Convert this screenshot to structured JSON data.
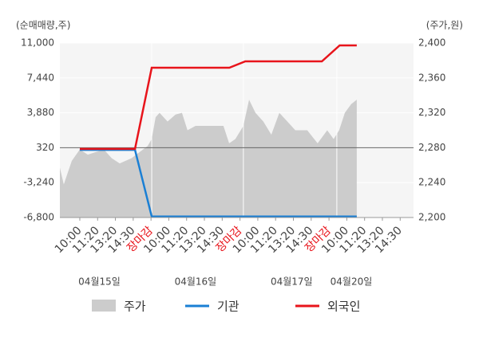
{
  "chart_data": {
    "type": "line",
    "y_label": "(순매매량,주)",
    "y2_label": "(주가,원)",
    "xlim": [
      -1.12,
      18.75
    ],
    "xticks": [
      {
        "value": 0,
        "label": "10:00"
      },
      {
        "value": 1,
        "label": "11:20"
      },
      {
        "value": 2,
        "label": "13:20"
      },
      {
        "value": 3,
        "label": "14:30"
      },
      {
        "value": 4,
        "label": "장마감"
      },
      {
        "value": 5,
        "label": "10:00"
      },
      {
        "value": 6,
        "label": "11:20"
      },
      {
        "value": 7,
        "label": "13:20"
      },
      {
        "value": 8,
        "label": "14:30"
      },
      {
        "value": 9,
        "label": "장마감"
      },
      {
        "value": 10,
        "label": "10:00"
      },
      {
        "value": 11,
        "label": "11:20"
      },
      {
        "value": 12,
        "label": "13:20"
      },
      {
        "value": 13,
        "label": "14:30"
      },
      {
        "value": 14,
        "label": "장마감"
      },
      {
        "value": 15,
        "label": "10:00"
      },
      {
        "value": 16,
        "label": "11:20"
      },
      {
        "value": 17,
        "label": "13:20"
      },
      {
        "value": 18,
        "label": "14:30"
      }
    ],
    "day_labels": [
      {
        "label": "04월15일",
        "x": 1.1
      },
      {
        "label": "04월16일",
        "x": 6.5
      },
      {
        "label": "04월17일",
        "x": 11.9
      },
      {
        "label": "04월20일",
        "x": 15.25
      }
    ],
    "day_breaks": [
      4.04,
      9.19,
      14.44
    ],
    "ylim": [
      -6800,
      11000
    ],
    "yticks": [
      {
        "value": 11000,
        "label": "11,000"
      },
      {
        "value": 7440,
        "label": "7,440"
      },
      {
        "value": 3880,
        "label": "3,880"
      },
      320,
      {
        "value": -3240,
        "label": "-3,240"
      },
      {
        "value": -6800,
        "label": "-6,800"
      }
    ],
    "y2lim": [
      2200,
      2400
    ],
    "y2ticks": [
      {
        "value": 2400,
        "label": "2,400"
      },
      {
        "value": 2360,
        "label": "2,360"
      },
      {
        "value": 2320,
        "label": "2,320"
      },
      {
        "value": 2280,
        "label": "2,280"
      },
      {
        "value": 2240,
        "label": "2,240"
      },
      {
        "value": 2200,
        "label": "2,200"
      }
    ],
    "series": [
      {
        "name": "주가",
        "color": "#cccccc",
        "axis": "y2",
        "kind": "area",
        "x": [
          -1.12,
          -0.9,
          -0.45,
          0,
          0.45,
          1.35,
          1.79,
          2.24,
          2.91,
          3.36,
          3.81,
          4.04,
          4.26,
          4.48,
          4.93,
          5.38,
          5.74,
          6.05,
          6.5,
          8.07,
          8.39,
          8.74,
          9.19,
          9.51,
          9.87,
          10.31,
          10.76,
          11.21,
          11.66,
          12.11,
          12.78,
          13.36,
          13.9,
          14.26,
          14.57,
          14.89,
          15.25,
          15.56
        ],
        "values": [
          2257,
          2238,
          2265,
          2278,
          2272,
          2278,
          2268,
          2262,
          2268,
          2275,
          2282,
          2290,
          2315,
          2320,
          2310,
          2318,
          2320,
          2300,
          2305,
          2305,
          2285,
          2290,
          2305,
          2335,
          2320,
          2310,
          2295,
          2320,
          2310,
          2300,
          2300,
          2285,
          2300,
          2290,
          2300,
          2320,
          2330,
          2335
        ]
      },
      {
        "name": "기관",
        "color": "#1a7fd4",
        "kind": "line",
        "x": [
          0,
          3.1,
          4.04,
          15.56
        ],
        "values": [
          100,
          100,
          -6700,
          -6700
        ]
      },
      {
        "name": "외국인",
        "color": "#e8141b",
        "kind": "line",
        "x": [
          0,
          3.1,
          4.04,
          8.4,
          9.3,
          13.6,
          14.6,
          15.56
        ],
        "values": [
          200,
          200,
          8480,
          8480,
          9130,
          9130,
          10760,
          10760
        ]
      }
    ]
  }
}
